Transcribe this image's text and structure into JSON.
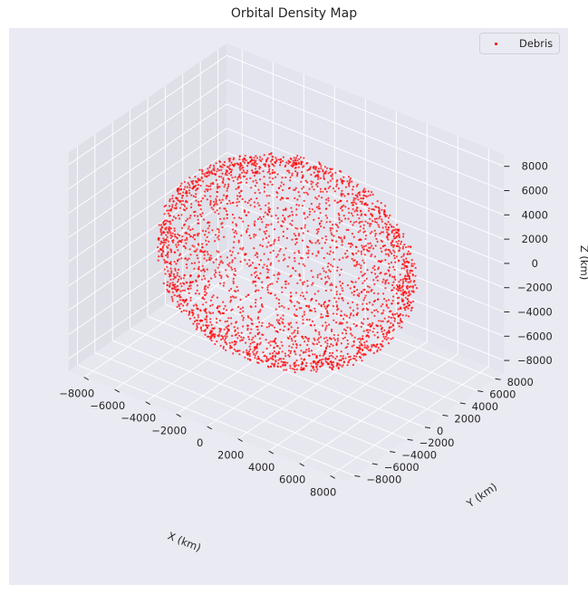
{
  "chart_data": {
    "type": "scatter",
    "projection": "3d",
    "title": "Orbital Density Map",
    "xlabel": "X (km)",
    "ylabel": "Y (km)",
    "zlabel": "Z (km)",
    "xlim": [
      -9000,
      9000
    ],
    "ylim": [
      -9000,
      9000
    ],
    "zlim": [
      -9000,
      9000
    ],
    "x_ticks": [
      -8000,
      -6000,
      -4000,
      -2000,
      0,
      2000,
      4000,
      6000,
      8000
    ],
    "y_ticks": [
      -8000,
      -6000,
      -4000,
      -2000,
      0,
      2000,
      4000,
      6000,
      8000
    ],
    "z_ticks": [
      -8000,
      -6000,
      -4000,
      -2000,
      0,
      2000,
      4000,
      6000,
      8000
    ],
    "grid": true,
    "legend_position": "top-right",
    "series": [
      {
        "name": "Debris",
        "color": "#ff0000",
        "marker": "point",
        "distribution": "shell of radius about 6800 to 7400 km centered at the origin",
        "radius_range": [
          6800,
          7400
        ],
        "point_count": 3000
      }
    ]
  },
  "colors": {
    "pane_left": "#dfdfe8",
    "pane_right": "#e4e4ee",
    "pane_floor": "#e7e7f0",
    "figure_background": "#eaeaf2",
    "grid": "#ffffff",
    "points": "#ff0000"
  }
}
